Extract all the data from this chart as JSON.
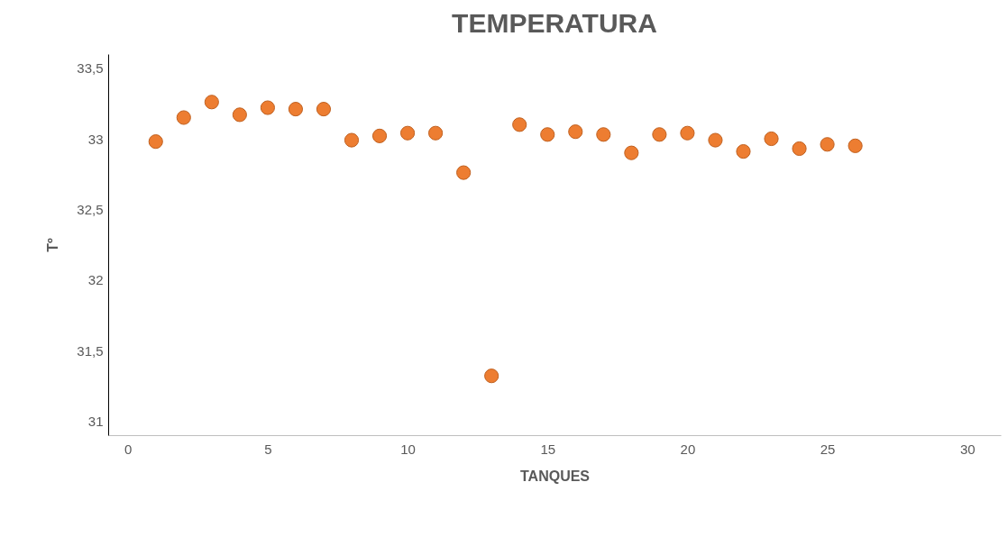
{
  "chart_data": {
    "type": "scatter",
    "title": "TEMPERATURA",
    "xlabel": "TANQUES",
    "ylabel": "Tº",
    "x": [
      1,
      2,
      3,
      4,
      5,
      6,
      7,
      8,
      9,
      10,
      11,
      12,
      13,
      14,
      15,
      16,
      17,
      18,
      19,
      20,
      21,
      22,
      23,
      24,
      25,
      26
    ],
    "series": [
      {
        "color": "#ed7d31",
        "values": [
          32.98,
          33.15,
          33.26,
          33.17,
          33.22,
          33.21,
          33.21,
          32.99,
          33.02,
          33.04,
          33.04,
          32.76,
          31.32,
          33.1,
          33.03,
          33.05,
          33.03,
          32.9,
          33.03,
          33.04,
          32.99,
          32.91,
          33.0,
          32.93,
          32.96,
          32.95
        ]
      }
    ],
    "xlim": [
      -0.7,
      31.2
    ],
    "ylim": [
      30.9,
      33.6
    ],
    "xticks": [
      0,
      5,
      10,
      15,
      20,
      25,
      30
    ],
    "yticks": [
      31,
      {
        "value": 31.5,
        "label": "31,5"
      },
      32,
      {
        "value": 32.5,
        "label": "32,5"
      },
      33,
      {
        "value": 33.5,
        "label": "33,5"
      }
    ],
    "grid": false,
    "marker": "circle"
  }
}
